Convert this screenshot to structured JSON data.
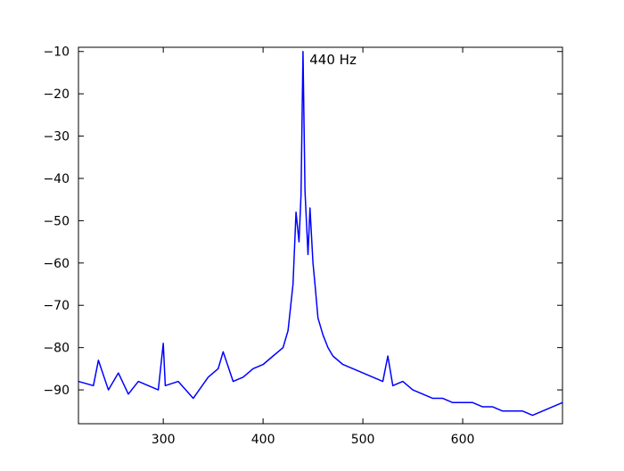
{
  "chart_data": {
    "type": "line",
    "title": "",
    "xlabel": "",
    "ylabel": "",
    "xlim": [
      215,
      700
    ],
    "ylim": [
      -98,
      -9
    ],
    "x_ticks": [
      300,
      400,
      500,
      600
    ],
    "y_ticks": [
      -10,
      -20,
      -30,
      -40,
      -50,
      -60,
      -70,
      -80,
      -90
    ],
    "grid": false,
    "legend": "none",
    "series": [
      {
        "color": "#0000ff",
        "peak_x": 440,
        "peak_y": -10,
        "points": [
          [
            215,
            -88
          ],
          [
            230,
            -89
          ],
          [
            235,
            -83
          ],
          [
            245,
            -90
          ],
          [
            255,
            -86
          ],
          [
            265,
            -91
          ],
          [
            275,
            -88
          ],
          [
            285,
            -89
          ],
          [
            295,
            -90
          ],
          [
            300,
            -79
          ],
          [
            302,
            -89
          ],
          [
            315,
            -88
          ],
          [
            330,
            -92
          ],
          [
            345,
            -87
          ],
          [
            355,
            -85
          ],
          [
            360,
            -81
          ],
          [
            370,
            -88
          ],
          [
            380,
            -87
          ],
          [
            390,
            -85
          ],
          [
            400,
            -84
          ],
          [
            410,
            -82
          ],
          [
            420,
            -80
          ],
          [
            425,
            -76
          ],
          [
            430,
            -65
          ],
          [
            433,
            -48
          ],
          [
            436,
            -55
          ],
          [
            438,
            -44
          ],
          [
            440,
            -10
          ],
          [
            442,
            -43
          ],
          [
            445,
            -58
          ],
          [
            447,
            -47
          ],
          [
            450,
            -60
          ],
          [
            452,
            -65
          ],
          [
            455,
            -73
          ],
          [
            460,
            -77
          ],
          [
            465,
            -80
          ],
          [
            470,
            -82
          ],
          [
            480,
            -84
          ],
          [
            490,
            -85
          ],
          [
            500,
            -86
          ],
          [
            510,
            -87
          ],
          [
            520,
            -88
          ],
          [
            525,
            -82
          ],
          [
            530,
            -89
          ],
          [
            540,
            -88
          ],
          [
            550,
            -90
          ],
          [
            560,
            -91
          ],
          [
            570,
            -92
          ],
          [
            580,
            -92
          ],
          [
            590,
            -93
          ],
          [
            600,
            -93
          ],
          [
            610,
            -93
          ],
          [
            620,
            -94
          ],
          [
            630,
            -94
          ],
          [
            640,
            -95
          ],
          [
            650,
            -95
          ],
          [
            660,
            -95
          ],
          [
            670,
            -96
          ],
          [
            680,
            -95
          ],
          [
            690,
            -94
          ],
          [
            700,
            -93
          ]
        ]
      }
    ],
    "annotations": [
      {
        "text": "440 Hz",
        "x": 443,
        "y": -13
      }
    ]
  }
}
